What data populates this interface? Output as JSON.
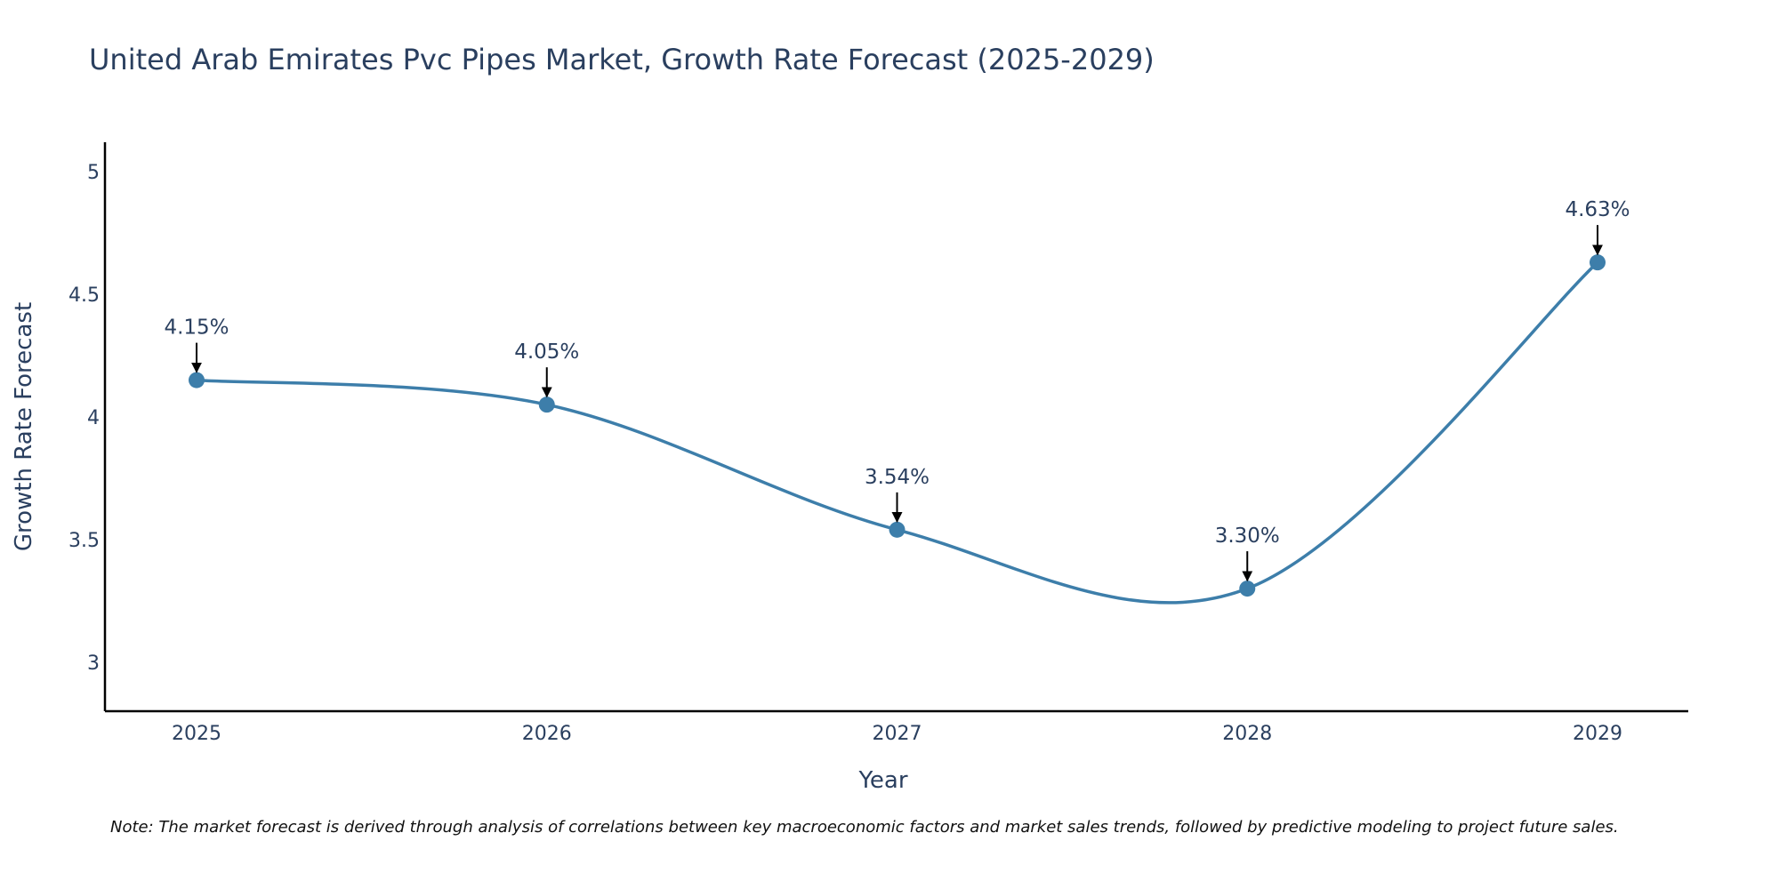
{
  "chart_data": {
    "type": "line",
    "title": "United Arab Emirates Pvc Pipes Market, Growth Rate Forecast (2025-2029)",
    "xlabel": "Year",
    "ylabel": "Growth Rate Forecast",
    "categories": [
      "2025",
      "2026",
      "2027",
      "2028",
      "2029"
    ],
    "series": [
      {
        "name": "Growth Rate Forecast",
        "values": [
          4.15,
          4.05,
          3.54,
          3.3,
          4.63
        ],
        "labels": [
          "4.15%",
          "4.05%",
          "3.54%",
          "3.30%",
          "4.63%"
        ]
      }
    ],
    "ylim": [
      2.8,
      5.12
    ],
    "yticks": [
      3,
      3.5,
      4,
      4.5,
      5
    ],
    "ytick_labels": [
      "3",
      "3.5",
      "4",
      "4.5",
      "5"
    ],
    "grid": false,
    "line_color": "#3d7eaa",
    "marker_color": "#3d7eaa",
    "arrow_color": "#000000",
    "axis_color": "#000000",
    "text_color": "#2a3f5f"
  },
  "footnote": "Note: The market forecast is derived through analysis of correlations between key macroeconomic factors and market sales trends, followed by predictive modeling to project future sales."
}
